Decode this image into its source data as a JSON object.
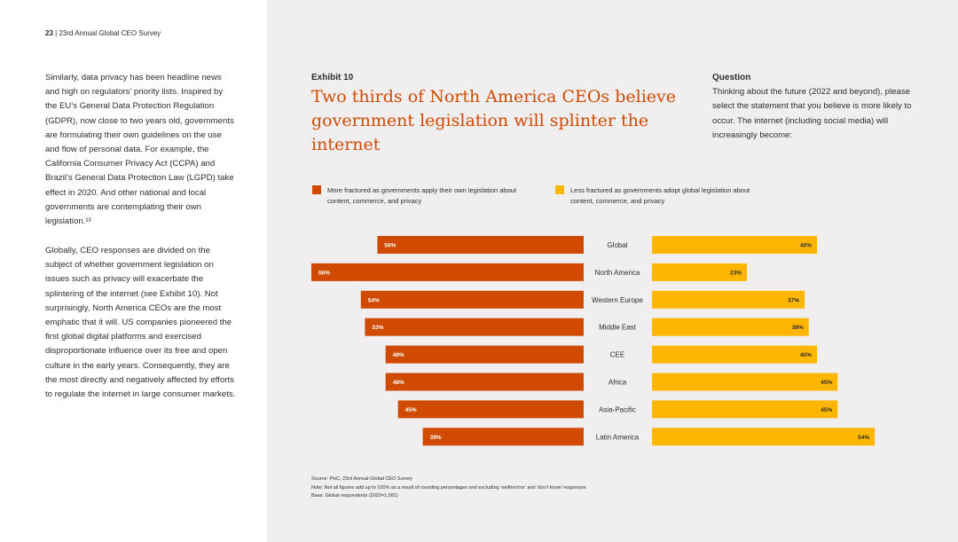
{
  "header": {
    "page_number": "23",
    "separator": "|",
    "title": "23rd Annual Global CEO Survey"
  },
  "body": {
    "paragraph1": "Similarly, data privacy has been headline news and high on regulators’ priority lists. Inspired by the EU’s General Data Protection Regulation (GDPR), now close to two years old, governments are formulating their own guidelines on the use and flow of personal data. For example, the California Consumer Privacy Act (CCPA) and Brazil’s General Data Protection Law (LGPD) take effect in 2020. And other national and local governments are contemplating their own legislation.¹³",
    "paragraph2": "Globally, CEO responses are divided on the subject of whether government legislation on issues such as privacy will exacerbate the splintering of the internet (see Exhibit 10). Not surprisingly, North America CEOs are the most emphatic that it will. US companies pioneered the first global digital platforms and exercised disproportionate influence over its free and open culture in the early years. Consequently, they are the most directly and negatively affected by efforts to regulate the internet in large consumer markets."
  },
  "exhibit": {
    "label": "Exhibit 10",
    "title": "Two thirds of North America CEOs believe government legislation will splinter the internet"
  },
  "question": {
    "label": "Question",
    "text": "Thinking about the future (2022 and beyond), please select the statement that you believe is more likely to occur. The internet (including social media) will increasingly become:"
  },
  "chart_data": {
    "type": "bar",
    "orientation": "horizontal-diverging",
    "categories": [
      "Global",
      "North America",
      "Western Europe",
      "Middle East",
      "CEE",
      "Africa",
      "Asia-Pacific",
      "Latin America"
    ],
    "series": [
      {
        "name": "More fractured as governments apply their own legislation about content, commerce, and privacy",
        "color": "#d04a02",
        "values": [
          50,
          66,
          54,
          53,
          48,
          48,
          45,
          39
        ]
      },
      {
        "name": "Less fractured as governments adopt global legislation about content, commerce, and privacy",
        "color": "#ffb600",
        "values": [
          40,
          23,
          37,
          38,
          40,
          45,
          45,
          54
        ]
      }
    ],
    "value_suffix": "%",
    "xlim": [
      0,
      66
    ]
  },
  "footnotes": {
    "source": "Source: PwC, 23rd Annual Global CEO Survey",
    "note": "Note: Not all figures add up to 100% as a result of rounding percentages and excluding ‘neither/nor’ and ‘don’t know’ responses",
    "base": "Base: Global respondents (2020=1,581)"
  }
}
